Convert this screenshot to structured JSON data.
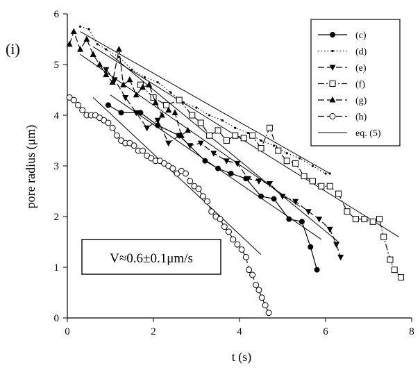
{
  "panel_label": "(i)",
  "annotation": "V≈0.6±0.1μm/s",
  "chart_data": {
    "type": "line",
    "xlabel": "t (s)",
    "ylabel": "pore radius (μm)",
    "xlim": [
      0,
      8
    ],
    "ylim": [
      0,
      6
    ],
    "xticks": [
      "0",
      "2",
      "4",
      "6",
      "8"
    ],
    "yticks": [
      "0",
      "1",
      "2",
      "3",
      "4",
      "5",
      "6"
    ],
    "grid": false,
    "legend_position": "top-right",
    "series": [
      {
        "name": "(c)",
        "marker": "filled-circle",
        "line": "solid",
        "x": [
          0.95,
          1.25,
          1.7,
          2.1,
          2.6,
          3.2,
          3.5,
          3.8,
          4.15,
          4.5,
          4.8,
          5.15,
          5.45,
          5.65,
          5.8
        ],
        "y": [
          4.2,
          4.05,
          4.05,
          3.8,
          3.6,
          3.1,
          2.95,
          2.85,
          2.75,
          2.4,
          2.35,
          1.95,
          1.9,
          1.4,
          0.95
        ]
      },
      {
        "name": "(d)",
        "marker": "small-dot",
        "line": "dotted",
        "x": [
          0.3,
          0.5,
          0.7,
          0.9,
          1.2,
          1.5,
          1.8,
          2.1,
          2.4,
          2.7,
          3.0,
          3.3,
          3.6,
          3.9,
          4.2,
          4.5,
          4.8,
          5.1,
          5.4,
          5.7,
          6.0,
          6.1
        ],
        "y": [
          5.75,
          5.7,
          5.4,
          5.3,
          5.15,
          4.9,
          4.75,
          4.65,
          4.45,
          4.25,
          4.15,
          4.0,
          3.9,
          3.75,
          3.65,
          3.5,
          3.4,
          3.25,
          3.15,
          3.0,
          2.85,
          2.85
        ]
      },
      {
        "name": "(e)",
        "marker": "filled-triangle-down",
        "line": "long-dash",
        "x": [
          0.9,
          1.1,
          1.35,
          1.6,
          1.85,
          2.1,
          2.35,
          2.6,
          2.85,
          3.1,
          3.4,
          3.7,
          3.95,
          4.2,
          4.45,
          4.7,
          5.0,
          5.3,
          5.6,
          5.85,
          6.1,
          6.25,
          6.35
        ],
        "y": [
          4.9,
          4.7,
          4.35,
          4.05,
          3.75,
          3.9,
          3.45,
          3.6,
          3.4,
          3.45,
          3.25,
          3.1,
          3.05,
          2.75,
          2.7,
          2.65,
          2.4,
          2.3,
          2.1,
          1.95,
          1.75,
          1.45,
          1.2
        ]
      },
      {
        "name": "(f)",
        "marker": "open-square",
        "line": "dash-dot",
        "x": [
          1.7,
          2.0,
          2.3,
          2.6,
          2.9,
          3.1,
          3.3,
          3.5,
          3.7,
          3.9,
          4.1,
          4.3,
          4.5,
          4.7,
          4.9,
          5.1,
          5.3,
          5.5,
          5.7,
          5.9,
          6.1,
          6.3,
          6.5,
          6.7,
          6.9,
          7.1,
          7.25,
          7.35,
          7.5,
          7.6,
          7.75
        ],
        "y": [
          4.6,
          4.35,
          4.2,
          4.3,
          4.0,
          3.85,
          3.6,
          3.7,
          3.5,
          3.6,
          3.55,
          3.6,
          3.35,
          3.75,
          3.3,
          3.1,
          3.05,
          2.8,
          2.7,
          2.6,
          2.6,
          2.45,
          2.1,
          1.95,
          1.95,
          1.9,
          1.95,
          1.6,
          1.15,
          0.95,
          0.8
        ]
      },
      {
        "name": "(g)",
        "marker": "filled-triangle-up",
        "line": "long-dash",
        "x": [
          0.05,
          0.15,
          0.3,
          0.45,
          0.6,
          0.75,
          0.9,
          1.05,
          1.2,
          1.3,
          1.45,
          1.6,
          1.75,
          1.9,
          2.05,
          2.2,
          2.35,
          2.5,
          2.65,
          2.8
        ],
        "y": [
          5.4,
          5.65,
          5.3,
          5.5,
          5.2,
          5.0,
          4.8,
          4.65,
          5.3,
          4.6,
          4.7,
          4.4,
          4.55,
          4.6,
          4.25,
          4.0,
          4.1,
          4.05,
          3.6,
          3.7
        ]
      },
      {
        "name": "(h)",
        "marker": "open-circle",
        "line": "long-dash",
        "x": [
          0.05,
          0.15,
          0.25,
          0.35,
          0.45,
          0.55,
          0.65,
          0.75,
          0.85,
          0.95,
          1.05,
          1.15,
          1.25,
          1.35,
          1.45,
          1.55,
          1.65,
          1.75,
          1.85,
          1.95,
          2.05,
          2.15,
          2.25,
          2.35,
          2.45,
          2.55,
          2.65,
          2.75,
          2.85,
          2.95,
          3.05,
          3.15,
          3.25,
          3.35,
          3.45,
          3.55,
          3.65,
          3.75,
          3.85,
          3.95,
          4.05,
          4.15,
          4.22,
          4.3,
          4.38,
          4.45,
          4.52,
          4.6,
          4.68
        ],
        "y": [
          4.35,
          4.3,
          4.2,
          4.1,
          4.0,
          4.0,
          4.0,
          3.95,
          3.9,
          3.85,
          3.75,
          3.6,
          3.5,
          3.45,
          3.45,
          3.4,
          3.3,
          3.3,
          3.2,
          3.15,
          3.1,
          3.1,
          3.05,
          3.0,
          2.95,
          2.85,
          2.9,
          2.85,
          2.7,
          2.6,
          2.55,
          2.4,
          2.3,
          2.1,
          2.0,
          1.95,
          1.8,
          1.7,
          1.55,
          1.45,
          1.35,
          1.2,
          0.95,
          0.85,
          0.65,
          0.55,
          0.4,
          0.25,
          0.1
        ]
      },
      {
        "name": "eq. (5)",
        "marker": "none",
        "line": "solid-thin",
        "x": [
          0.3,
          6.1
        ],
        "y": [
          5.65,
          2.85
        ]
      }
    ],
    "fit_lines": [
      {
        "x": [
          0.3,
          6.1
        ],
        "y": [
          5.65,
          2.85
        ]
      },
      {
        "x": [
          0.6,
          7.7
        ],
        "y": [
          5.35,
          1.6
        ]
      },
      {
        "x": [
          1.0,
          6.3
        ],
        "y": [
          5.2,
          1.5
        ]
      },
      {
        "x": [
          0.3,
          5.4
        ],
        "y": [
          5.2,
          2.2
        ]
      },
      {
        "x": [
          1.0,
          5.9
        ],
        "y": [
          4.4,
          1.55
        ]
      },
      {
        "x": [
          0.6,
          4.5
        ],
        "y": [
          4.35,
          1.25
        ]
      }
    ]
  }
}
